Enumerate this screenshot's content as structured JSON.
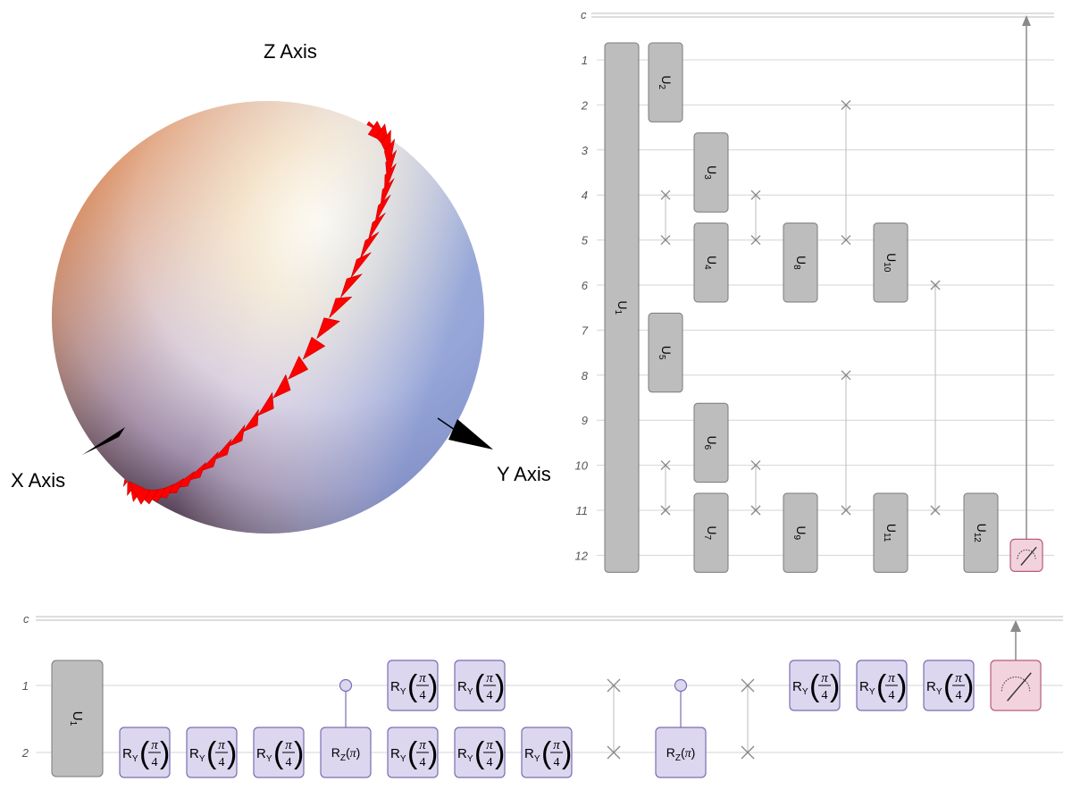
{
  "sphere": {
    "axes": [
      {
        "id": "z",
        "label": "Z Axis"
      },
      {
        "id": "x",
        "label": "X Axis"
      },
      {
        "id": "y",
        "label": "Y Axis"
      }
    ],
    "arrow_color": "#ff0000"
  },
  "circuit_top": {
    "classical_label": "c",
    "wires": [
      "1",
      "2",
      "3",
      "4",
      "5",
      "6",
      "7",
      "8",
      "9",
      "10",
      "11",
      "12"
    ],
    "gates": [
      {
        "name": "U",
        "sub": "1",
        "col": 0,
        "from": 1,
        "to": 12
      },
      {
        "name": "U",
        "sub": "2",
        "col": 1,
        "from": 1,
        "to": 2
      },
      {
        "name": "U",
        "sub": "5",
        "col": 1,
        "from": 7,
        "to": 8
      },
      {
        "name": "U",
        "sub": "3",
        "col": 2,
        "from": 3,
        "to": 4
      },
      {
        "name": "U",
        "sub": "4",
        "col": 2,
        "from": 5,
        "to": 6
      },
      {
        "name": "U",
        "sub": "6",
        "col": 2,
        "from": 9,
        "to": 10
      },
      {
        "name": "U",
        "sub": "7",
        "col": 2,
        "from": 11,
        "to": 12
      },
      {
        "name": "U",
        "sub": "8",
        "col": 3,
        "from": 5,
        "to": 6
      },
      {
        "name": "U",
        "sub": "9",
        "col": 3,
        "from": 11,
        "to": 12
      },
      {
        "name": "U",
        "sub": "10",
        "col": 4,
        "from": 5,
        "to": 6
      },
      {
        "name": "U",
        "sub": "11",
        "col": 4,
        "from": 11,
        "to": 12
      },
      {
        "name": "U",
        "sub": "12",
        "col": 5,
        "from": 11,
        "to": 12
      }
    ],
    "swaps": [
      {
        "x": 745,
        "wires": [
          4,
          5
        ]
      },
      {
        "x": 745,
        "wires": [
          10,
          11
        ]
      },
      {
        "x": 846,
        "wires": [
          4,
          5
        ]
      },
      {
        "x": 846,
        "wires": [
          10,
          11
        ]
      },
      {
        "x": 947,
        "wires": [
          2,
          5
        ]
      },
      {
        "x": 947,
        "wires": [
          8,
          11
        ]
      },
      {
        "x": 1047,
        "wires": [
          6,
          11
        ]
      }
    ],
    "measure": {
      "wire": 12
    }
  },
  "circuit_bottom": {
    "classical_label": "c",
    "wires": [
      "1",
      "2"
    ],
    "u1": {
      "name": "U",
      "sub": "1"
    },
    "ry": {
      "name": "R",
      "sub": "Y",
      "num": "π",
      "den": "4"
    },
    "rz": {
      "name": "R",
      "sub": "Z",
      "arg": "π"
    },
    "ops": [
      {
        "type": "ry",
        "x": 162,
        "wire": 2
      },
      {
        "type": "ry",
        "x": 237,
        "wire": 2
      },
      {
        "type": "ry",
        "x": 312,
        "wire": 2
      },
      {
        "type": "crz",
        "x": 387
      },
      {
        "type": "ry",
        "x": 462,
        "wire": 1
      },
      {
        "type": "ry",
        "x": 462,
        "wire": 2
      },
      {
        "type": "ry",
        "x": 537,
        "wire": 1
      },
      {
        "type": "ry",
        "x": 537,
        "wire": 2
      },
      {
        "type": "ry",
        "x": 612,
        "wire": 2
      },
      {
        "type": "swap",
        "x": 687
      },
      {
        "type": "crz",
        "x": 762
      },
      {
        "type": "swap",
        "x": 837
      },
      {
        "type": "ry",
        "x": 912,
        "wire": 1
      },
      {
        "type": "ry",
        "x": 987,
        "wire": 1
      },
      {
        "type": "ry",
        "x": 1062,
        "wire": 1
      },
      {
        "type": "measure",
        "x": 1137,
        "wire": 1
      }
    ]
  }
}
